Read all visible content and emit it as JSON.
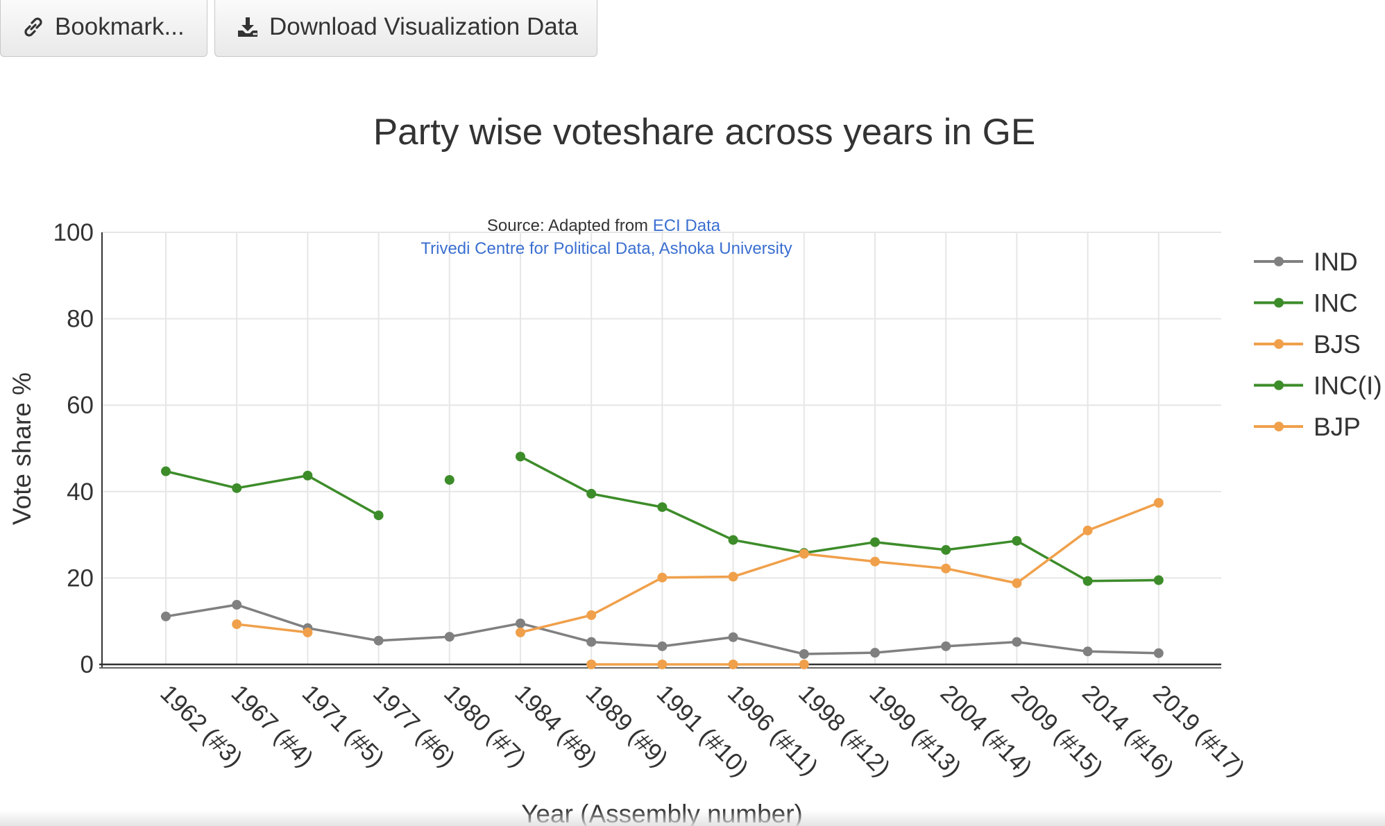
{
  "toolbar": {
    "bookmark_label": "Bookmark...",
    "bookmark_icon": "link-icon",
    "download_label": "Download Visualization Data",
    "download_icon": "download-icon"
  },
  "source": {
    "prefix": "Source: Adapted from ",
    "link_text": "ECI Data",
    "credit": "Trivedi Centre for Political Data, Ashoka University",
    "link_color": "#3b6fd0"
  },
  "chart_data": {
    "type": "line",
    "title": "Party wise voteshare across years in GE",
    "xlabel": "Year (Assembly number)",
    "ylabel": "Vote share %",
    "ylim": [
      0,
      100
    ],
    "yticks": [
      0,
      20,
      40,
      60,
      80,
      100
    ],
    "grid": true,
    "legend_position": "right",
    "categories": [
      "1962 (#3)",
      "1967 (#4)",
      "1971 (#5)",
      "1977 (#6)",
      "1980 (#7)",
      "1984 (#8)",
      "1989 (#9)",
      "1991 (#10)",
      "1996 (#11)",
      "1998 (#12)",
      "1999 (#13)",
      "2004 (#14)",
      "2009 (#15)",
      "2014 (#16)",
      "2019 (#17)"
    ],
    "series": [
      {
        "name": "IND",
        "color": "#808080",
        "values": [
          11.1,
          13.8,
          8.4,
          5.5,
          6.4,
          9.5,
          5.2,
          4.2,
          6.3,
          2.4,
          2.7,
          4.2,
          5.2,
          3.0,
          2.6
        ]
      },
      {
        "name": "INC",
        "color": "#3d8c2a",
        "values": [
          44.7,
          40.8,
          43.7,
          34.5,
          null,
          48.1,
          39.5,
          36.4,
          28.8,
          25.8,
          28.3,
          26.5,
          28.6,
          19.3,
          19.5
        ]
      },
      {
        "name": "BJS",
        "color": "#f0a04b",
        "values": [
          null,
          9.3,
          7.4,
          null,
          null,
          null,
          null,
          null,
          null,
          null,
          null,
          null,
          null,
          null,
          null
        ]
      },
      {
        "name": "INC(I)",
        "color": "#3d8c2a",
        "values": [
          null,
          null,
          null,
          null,
          42.7,
          null,
          null,
          null,
          null,
          null,
          null,
          null,
          null,
          null,
          null
        ]
      },
      {
        "name": "BJP",
        "color": "#f0a04b",
        "values": [
          null,
          null,
          null,
          null,
          null,
          7.4,
          11.4,
          20.1,
          20.3,
          25.6,
          23.8,
          22.2,
          18.8,
          31.0,
          37.4
        ]
      },
      {
        "name": "",
        "color": "#f0a04b",
        "values": [
          null,
          null,
          null,
          null,
          null,
          null,
          0,
          0,
          0,
          0,
          null,
          null,
          null,
          null,
          null
        ]
      }
    ]
  }
}
